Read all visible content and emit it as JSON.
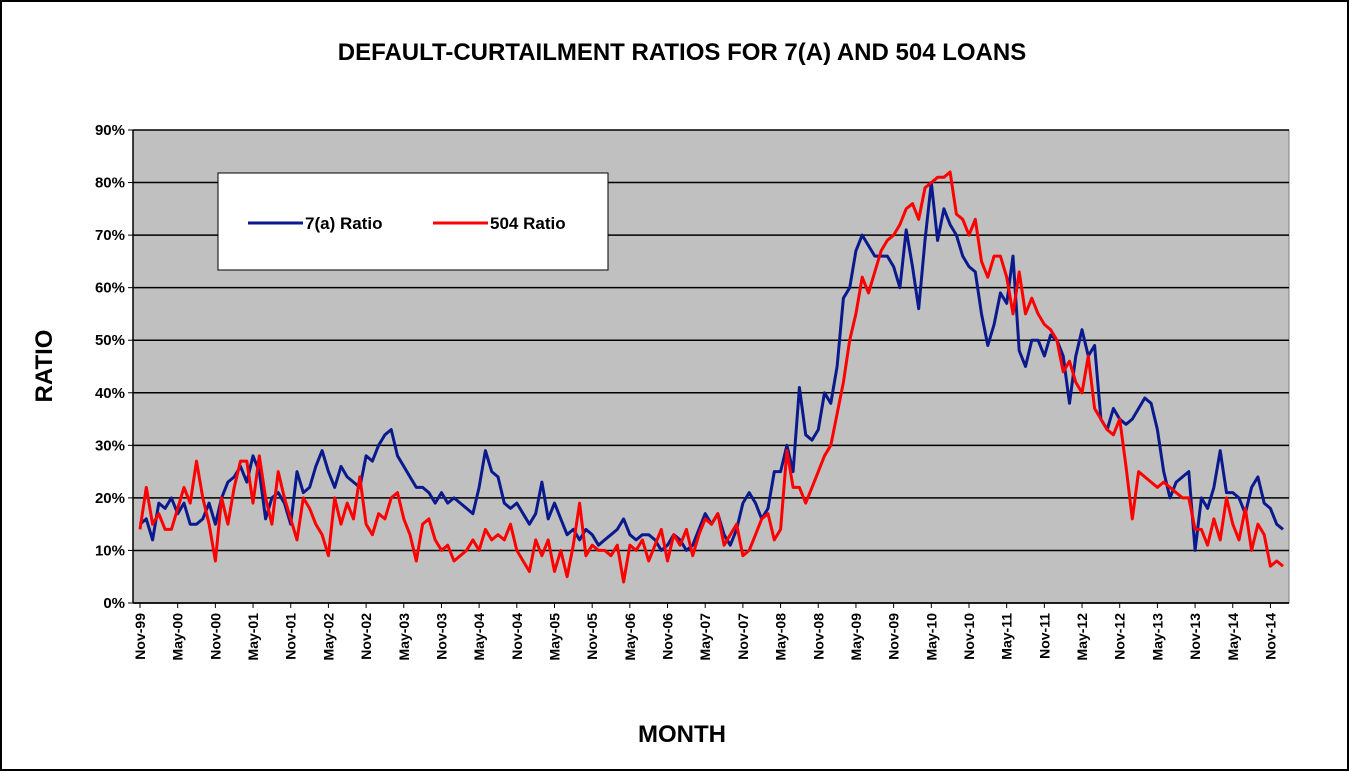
{
  "chart_data": {
    "type": "line",
    "title": "DEFAULT-CURTAILMENT RATIOS FOR 7(A) AND 504 LOANS",
    "x_label": "MONTH",
    "y_label": "RATIO",
    "categories": [
      "Nov-99",
      null,
      null,
      null,
      null,
      null,
      "May-00",
      null,
      null,
      null,
      null,
      null,
      "Nov-00",
      null,
      null,
      null,
      null,
      null,
      "May-01",
      null,
      null,
      null,
      null,
      null,
      "Nov-01",
      null,
      null,
      null,
      null,
      null,
      "May-02",
      null,
      null,
      null,
      null,
      null,
      "Nov-02",
      null,
      null,
      null,
      null,
      null,
      "May-03",
      null,
      null,
      null,
      null,
      null,
      "Nov-03",
      null,
      null,
      null,
      null,
      null,
      "May-04",
      null,
      null,
      null,
      null,
      null,
      "Nov-04",
      null,
      null,
      null,
      null,
      null,
      "May-05",
      null,
      null,
      null,
      null,
      null,
      "Nov-05",
      null,
      null,
      null,
      null,
      null,
      "May-06",
      null,
      null,
      null,
      null,
      null,
      "Nov-06",
      null,
      null,
      null,
      null,
      null,
      "May-07",
      null,
      null,
      null,
      null,
      null,
      "Nov-07",
      null,
      null,
      null,
      null,
      null,
      "May-08",
      null,
      null,
      null,
      null,
      null,
      "Nov-08",
      null,
      null,
      null,
      null,
      null,
      "May-09",
      null,
      null,
      null,
      null,
      null,
      "Nov-09",
      null,
      null,
      null,
      null,
      null,
      "May-10",
      null,
      null,
      null,
      null,
      null,
      "Nov-10",
      null,
      null,
      null,
      null,
      null,
      "May-11",
      null,
      null,
      null,
      null,
      null,
      "Nov-11",
      null,
      null,
      null,
      null,
      null,
      "May-12",
      null,
      null,
      null,
      null,
      null,
      "Nov-12",
      null,
      null,
      null,
      null,
      null,
      "May-13",
      null,
      null,
      null,
      null,
      null,
      "Nov-13",
      null,
      null,
      null,
      null,
      null,
      "May-14",
      null,
      null,
      null,
      null,
      null,
      "Nov-14",
      null,
      null
    ],
    "series": [
      {
        "name": "7(a) Ratio",
        "color": "#0a1a8c",
        "values": [
          15,
          16,
          12,
          19,
          18,
          20,
          17,
          19,
          15,
          15,
          16,
          19,
          15,
          20,
          23,
          24,
          26,
          23,
          28,
          25,
          16,
          20,
          21,
          19,
          15,
          25,
          21,
          22,
          26,
          29,
          25,
          22,
          26,
          24,
          23,
          22,
          28,
          27,
          30,
          32,
          33,
          28,
          26,
          24,
          22,
          22,
          21,
          19,
          21,
          19,
          20,
          19,
          18,
          17,
          22,
          29,
          25,
          24,
          19,
          18,
          19,
          17,
          15,
          17,
          23,
          16,
          19,
          16,
          13,
          14,
          12,
          14,
          13,
          11,
          12,
          13,
          14,
          16,
          13,
          12,
          13,
          13,
          12,
          10,
          11,
          13,
          12,
          10,
          11,
          14,
          17,
          15,
          17,
          13,
          11,
          14,
          19,
          21,
          19,
          16,
          18,
          25,
          25,
          30,
          25,
          41,
          32,
          31,
          33,
          40,
          38,
          45,
          58,
          60,
          67,
          70,
          68,
          66,
          66,
          66,
          64,
          60,
          71,
          64,
          56,
          69,
          80,
          69,
          75,
          72,
          70,
          66,
          64,
          63,
          55,
          49,
          53,
          59,
          57,
          66,
          48,
          45,
          50,
          50,
          47,
          51,
          50,
          47,
          38,
          47,
          52,
          47,
          49,
          35,
          33,
          37,
          35,
          34,
          35,
          37,
          39,
          38,
          33,
          25,
          20,
          23,
          24,
          25,
          10,
          20,
          18,
          22,
          29,
          21,
          21,
          20,
          17,
          22,
          24,
          19,
          18,
          15,
          14
        ]
      },
      {
        "name": "504 Ratio",
        "color": "#ff0000",
        "values": [
          14,
          22,
          15,
          17,
          14,
          14,
          18,
          22,
          19,
          27,
          20,
          15,
          8,
          20,
          15,
          22,
          27,
          27,
          19,
          28,
          20,
          15,
          25,
          20,
          16,
          12,
          20,
          18,
          15,
          13,
          9,
          20,
          15,
          19,
          16,
          24,
          15,
          13,
          17,
          16,
          20,
          21,
          16,
          13,
          8,
          15,
          16,
          12,
          10,
          11,
          8,
          9,
          10,
          12,
          10,
          14,
          12,
          13,
          12,
          15,
          10,
          8,
          6,
          12,
          9,
          12,
          6,
          10,
          5,
          11,
          19,
          9,
          11,
          10,
          10,
          9,
          11,
          4,
          11,
          10,
          12,
          8,
          11,
          14,
          8,
          13,
          11,
          14,
          9,
          13,
          16,
          15,
          17,
          11,
          13,
          15,
          9,
          10,
          13,
          16,
          17,
          12,
          14,
          29,
          22,
          22,
          19,
          22,
          25,
          28,
          30,
          36,
          42,
          50,
          55,
          62,
          59,
          63,
          67,
          69,
          70,
          72,
          75,
          76,
          73,
          79,
          80,
          81,
          81,
          82,
          74,
          73,
          70,
          73,
          65,
          62,
          66,
          66,
          62,
          55,
          63,
          55,
          58,
          55,
          53,
          52,
          50,
          44,
          46,
          42,
          40,
          47,
          37,
          35,
          33,
          32,
          35,
          26,
          16,
          25,
          24,
          23,
          22,
          23,
          22,
          21,
          20,
          20,
          14,
          14,
          11,
          16,
          12,
          20,
          15,
          12,
          18,
          10,
          15,
          13,
          7,
          8,
          7
        ]
      }
    ],
    "ylim": [
      0,
      90
    ],
    "yticks": [
      {
        "value": 0,
        "label": "0%"
      },
      {
        "value": 10,
        "label": "10%"
      },
      {
        "value": 20,
        "label": "20%"
      },
      {
        "value": 30,
        "label": "30%"
      },
      {
        "value": 40,
        "label": "40%"
      },
      {
        "value": 50,
        "label": "50%"
      },
      {
        "value": 60,
        "label": "60%"
      },
      {
        "value": 70,
        "label": "70%"
      },
      {
        "value": 80,
        "label": "80%"
      },
      {
        "value": 90,
        "label": "90%"
      }
    ],
    "grid": true,
    "legend": "upper left"
  }
}
